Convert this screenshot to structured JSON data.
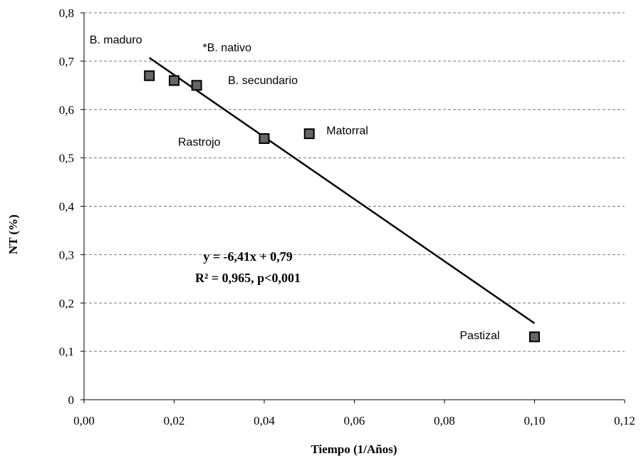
{
  "chart_data": {
    "type": "scatter",
    "xlabel": "Tiempo (1/Años)",
    "ylabel": "NT (%)",
    "xlim": [
      0,
      0.12
    ],
    "ylim": [
      0,
      0.8
    ],
    "x_ticks": [
      "0,00",
      "0,02",
      "0,04",
      "0,06",
      "0,08",
      "0,10",
      "0,12"
    ],
    "y_ticks": [
      "0",
      "0,1",
      "0,2",
      "0,3",
      "0,4",
      "0,5",
      "0,6",
      "0,7",
      "0,8"
    ],
    "grid": "horizontal dashed",
    "marker": "square",
    "marker_color": "#666666",
    "points": [
      {
        "label": "B. maduro",
        "x": 0.0145,
        "y": 0.67
      },
      {
        "label": "*B. nativo",
        "x": 0.02,
        "y": 0.66
      },
      {
        "label": "B. secundario",
        "x": 0.025,
        "y": 0.65
      },
      {
        "label": "Rastrojo",
        "x": 0.04,
        "y": 0.54
      },
      {
        "label": "Matorral",
        "x": 0.05,
        "y": 0.55
      },
      {
        "label": "Pastizal",
        "x": 0.1,
        "y": 0.13
      }
    ],
    "trendline": {
      "x": [
        0.0145,
        0.1
      ],
      "y": [
        0.707,
        0.158
      ]
    },
    "equation": "y = -6,41x + 0,79",
    "r2_text": "R² = 0,965, p<0,001"
  }
}
